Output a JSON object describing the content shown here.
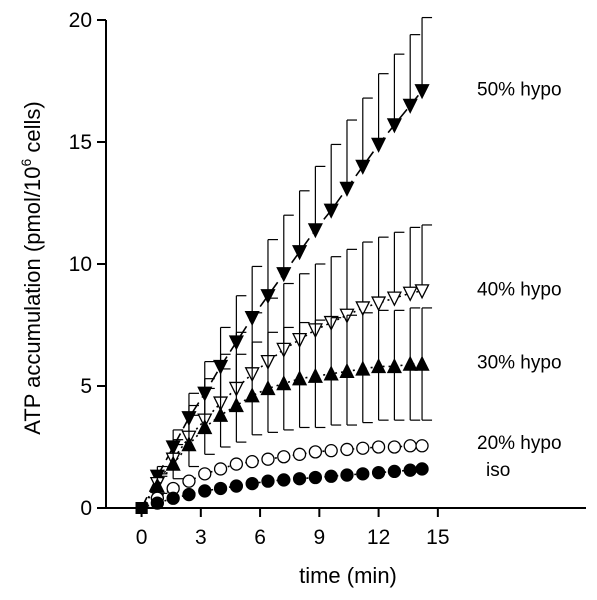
{
  "chart_data": {
    "type": "scatter",
    "title": "",
    "xlabel": "time (min)",
    "ylabel": {
      "prefix": "ATP accumulation (pmol/10",
      "superscript": "6",
      "suffix": " cells)"
    },
    "xlim": [
      -1.8,
      22.5
    ],
    "ylim": [
      0,
      20
    ],
    "x_ticks": [
      0,
      3,
      6,
      9,
      12,
      15
    ],
    "y_ticks": [
      0,
      5,
      10,
      15,
      20
    ],
    "x_tick_labels": [
      "0",
      "3",
      "6",
      "9",
      "12",
      "15"
    ],
    "y_tick_labels": [
      "0",
      "5",
      "10",
      "15",
      "20"
    ],
    "grid": false,
    "legend": "none",
    "x": [
      0,
      0.8,
      1.6,
      2.4,
      3.2,
      4.0,
      4.8,
      5.6,
      6.4,
      7.2,
      8.0,
      8.8,
      9.6,
      10.4,
      11.2,
      12.0,
      12.8,
      13.6,
      14.2
    ],
    "series": [
      {
        "name": "50% hypo",
        "marker": "triangle-down-filled",
        "line": "dashed",
        "values": [
          0,
          1.3,
          2.5,
          3.7,
          4.7,
          5.8,
          6.8,
          7.8,
          8.7,
          9.6,
          10.5,
          11.4,
          12.2,
          13.1,
          14.0,
          14.9,
          15.7,
          16.5,
          17.1
        ],
        "error_upper": [
          0,
          0.4,
          0.7,
          1.0,
          1.3,
          1.6,
          1.9,
          2.1,
          2.3,
          2.4,
          2.5,
          2.6,
          2.7,
          2.8,
          2.8,
          2.9,
          2.9,
          2.9,
          3.0
        ]
      },
      {
        "name": "40% hypo",
        "marker": "triangle-down-open",
        "line": "dotted",
        "values": [
          0,
          1.0,
          2.0,
          2.9,
          3.6,
          4.3,
          4.9,
          5.5,
          6.0,
          6.5,
          6.9,
          7.3,
          7.6,
          7.9,
          8.2,
          8.4,
          8.6,
          8.8,
          8.9
        ],
        "error_upper": [
          0,
          0.4,
          0.8,
          1.3,
          1.7,
          2.0,
          2.3,
          2.5,
          2.6,
          2.7,
          2.7,
          2.7,
          2.7,
          2.7,
          2.7,
          2.7,
          2.7,
          2.7,
          2.7
        ]
      },
      {
        "name": "30% hypo",
        "marker": "triangle-up-filled",
        "line": "dotted",
        "values": [
          0,
          0.9,
          1.8,
          2.6,
          3.3,
          3.8,
          4.2,
          4.6,
          4.9,
          5.1,
          5.3,
          5.4,
          5.5,
          5.6,
          5.7,
          5.8,
          5.8,
          5.9,
          5.9
        ],
        "error_upper": [
          0,
          0.4,
          0.8,
          1.2,
          1.6,
          1.9,
          2.1,
          2.2,
          2.3,
          2.3,
          2.3,
          2.3,
          2.3,
          2.3,
          2.3,
          2.3,
          2.3,
          2.3,
          2.3
        ],
        "error_lower": [
          0,
          0.3,
          0.6,
          0.9,
          1.1,
          1.3,
          1.5,
          1.6,
          1.8,
          1.9,
          2.0,
          2.1,
          2.1,
          2.2,
          2.2,
          2.2,
          2.2,
          2.3,
          2.3
        ]
      },
      {
        "name": "20% hypo",
        "marker": "circle-open",
        "line": "dotted",
        "values": [
          0,
          0.4,
          0.8,
          1.1,
          1.4,
          1.6,
          1.8,
          1.9,
          2.0,
          2.1,
          2.2,
          2.3,
          2.35,
          2.4,
          2.45,
          2.5,
          2.5,
          2.55,
          2.55
        ],
        "error_upper": []
      },
      {
        "name": "iso",
        "marker": "circle-filled",
        "line": "dotted",
        "values": [
          0,
          0.2,
          0.4,
          0.55,
          0.7,
          0.8,
          0.9,
          1.0,
          1.1,
          1.15,
          1.2,
          1.25,
          1.3,
          1.35,
          1.4,
          1.45,
          1.5,
          1.55,
          1.6
        ],
        "error_upper": []
      }
    ],
    "series_label_y": [
      17.2,
      9.0,
      6.0,
      2.7,
      1.6
    ]
  }
}
